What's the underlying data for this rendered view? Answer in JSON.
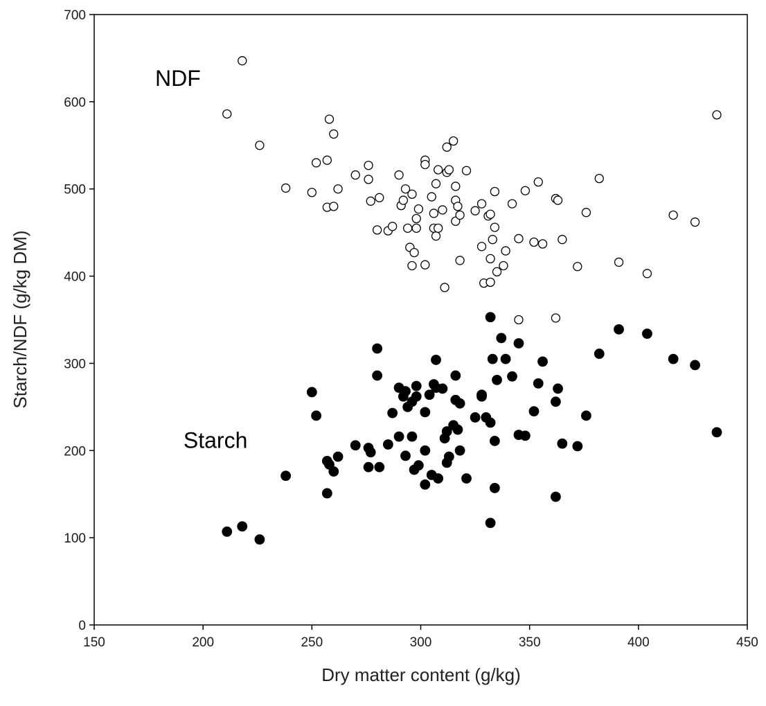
{
  "chart_data": {
    "type": "scatter",
    "title": "",
    "xlabel": "Dry matter content (g/kg)",
    "ylabel": "Starch/NDF (g/kg DM)",
    "xlim": [
      150,
      450
    ],
    "ylim": [
      0,
      700
    ],
    "x_ticks": [
      150,
      200,
      250,
      300,
      350,
      400,
      450
    ],
    "y_ticks": [
      0,
      100,
      200,
      300,
      400,
      500,
      600,
      700
    ],
    "grid": false,
    "legend": "none",
    "series": [
      {
        "name": "NDF",
        "marker": "open-circle",
        "color": "#000000",
        "points": [
          [
            211,
            586
          ],
          [
            218,
            647
          ],
          [
            226,
            550
          ],
          [
            238,
            501
          ],
          [
            250,
            496
          ],
          [
            252,
            530
          ],
          [
            257,
            533
          ],
          [
            257,
            479
          ],
          [
            258,
            580
          ],
          [
            260,
            563
          ],
          [
            260,
            480
          ],
          [
            262,
            500
          ],
          [
            270,
            516
          ],
          [
            276,
            527
          ],
          [
            276,
            511
          ],
          [
            277,
            486
          ],
          [
            280,
            453
          ],
          [
            281,
            490
          ],
          [
            285,
            452
          ],
          [
            287,
            457
          ],
          [
            290,
            516
          ],
          [
            291,
            481
          ],
          [
            292,
            487
          ],
          [
            293,
            500
          ],
          [
            294,
            455
          ],
          [
            295,
            433
          ],
          [
            296,
            412
          ],
          [
            296,
            494
          ],
          [
            297,
            427
          ],
          [
            298,
            466
          ],
          [
            298,
            455
          ],
          [
            299,
            477
          ],
          [
            302,
            413
          ],
          [
            302,
            533
          ],
          [
            302,
            528
          ],
          [
            305,
            491
          ],
          [
            306,
            472
          ],
          [
            306,
            455
          ],
          [
            307,
            506
          ],
          [
            307,
            446
          ],
          [
            308,
            455
          ],
          [
            308,
            522
          ],
          [
            310,
            476
          ],
          [
            311,
            387
          ],
          [
            312,
            548
          ],
          [
            312,
            519
          ],
          [
            313,
            522
          ],
          [
            315,
            555
          ],
          [
            316,
            503
          ],
          [
            316,
            487
          ],
          [
            316,
            463
          ],
          [
            317,
            480
          ],
          [
            318,
            470
          ],
          [
            318,
            418
          ],
          [
            321,
            521
          ],
          [
            325,
            475
          ],
          [
            328,
            483
          ],
          [
            328,
            434
          ],
          [
            329,
            392
          ],
          [
            331,
            469
          ],
          [
            332,
            471
          ],
          [
            332,
            420
          ],
          [
            332,
            393
          ],
          [
            333,
            442
          ],
          [
            334,
            497
          ],
          [
            334,
            456
          ],
          [
            335,
            405
          ],
          [
            338,
            412
          ],
          [
            339,
            429
          ],
          [
            342,
            483
          ],
          [
            345,
            350
          ],
          [
            345,
            443
          ],
          [
            348,
            498
          ],
          [
            352,
            439
          ],
          [
            354,
            508
          ],
          [
            356,
            437
          ],
          [
            362,
            489
          ],
          [
            362,
            352
          ],
          [
            363,
            487
          ],
          [
            365,
            442
          ],
          [
            372,
            411
          ],
          [
            376,
            473
          ],
          [
            382,
            512
          ],
          [
            391,
            416
          ],
          [
            404,
            403
          ],
          [
            416,
            470
          ],
          [
            426,
            462
          ],
          [
            436,
            585
          ]
        ]
      },
      {
        "name": "Starch",
        "marker": "filled-circle",
        "color": "#000000",
        "points": [
          [
            211,
            107
          ],
          [
            218,
            113
          ],
          [
            226,
            98
          ],
          [
            238,
            171
          ],
          [
            250,
            267
          ],
          [
            252,
            240
          ],
          [
            257,
            151
          ],
          [
            257,
            188
          ],
          [
            258,
            184
          ],
          [
            260,
            176
          ],
          [
            262,
            193
          ],
          [
            270,
            206
          ],
          [
            276,
            203
          ],
          [
            276,
            181
          ],
          [
            277,
            198
          ],
          [
            280,
            317
          ],
          [
            280,
            286
          ],
          [
            281,
            181
          ],
          [
            285,
            207
          ],
          [
            287,
            243
          ],
          [
            290,
            216
          ],
          [
            290,
            272
          ],
          [
            292,
            262
          ],
          [
            293,
            194
          ],
          [
            293,
            268
          ],
          [
            294,
            250
          ],
          [
            296,
            256
          ],
          [
            296,
            216
          ],
          [
            297,
            178
          ],
          [
            298,
            274
          ],
          [
            298,
            262
          ],
          [
            299,
            183
          ],
          [
            302,
            244
          ],
          [
            302,
            161
          ],
          [
            302,
            200
          ],
          [
            304,
            264
          ],
          [
            305,
            172
          ],
          [
            306,
            276
          ],
          [
            307,
            272
          ],
          [
            307,
            304
          ],
          [
            308,
            168
          ],
          [
            310,
            271
          ],
          [
            311,
            214
          ],
          [
            312,
            222
          ],
          [
            312,
            186
          ],
          [
            313,
            193
          ],
          [
            315,
            229
          ],
          [
            316,
            286
          ],
          [
            316,
            258
          ],
          [
            317,
            224
          ],
          [
            318,
            254
          ],
          [
            318,
            200
          ],
          [
            321,
            168
          ],
          [
            325,
            238
          ],
          [
            328,
            264
          ],
          [
            328,
            262
          ],
          [
            330,
            238
          ],
          [
            332,
            353
          ],
          [
            332,
            232
          ],
          [
            332,
            117
          ],
          [
            333,
            305
          ],
          [
            334,
            157
          ],
          [
            334,
            211
          ],
          [
            335,
            281
          ],
          [
            337,
            329
          ],
          [
            339,
            305
          ],
          [
            342,
            285
          ],
          [
            345,
            323
          ],
          [
            345,
            218
          ],
          [
            348,
            217
          ],
          [
            352,
            245
          ],
          [
            354,
            277
          ],
          [
            356,
            302
          ],
          [
            362,
            256
          ],
          [
            362,
            147
          ],
          [
            363,
            271
          ],
          [
            365,
            208
          ],
          [
            372,
            205
          ],
          [
            376,
            240
          ],
          [
            382,
            311
          ],
          [
            391,
            339
          ],
          [
            404,
            334
          ],
          [
            416,
            305
          ],
          [
            426,
            298
          ],
          [
            436,
            221
          ]
        ]
      }
    ],
    "annotations": [
      {
        "text": "NDF",
        "x": 178,
        "y": 618
      },
      {
        "text": "Starch",
        "x": 191,
        "y": 203
      }
    ]
  }
}
